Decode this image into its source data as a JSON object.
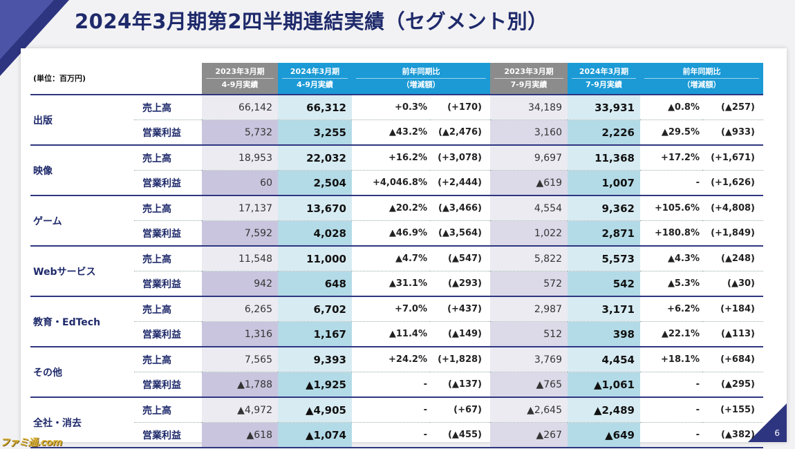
{
  "title": "2024年3月期第2四半期連結実績（セグメント別）",
  "unit_label": "(単位：百万円)",
  "page_number": "6",
  "watermark": "ファミ通.com",
  "headers": {
    "c1": [
      "2023年3月期",
      "4-9月実績"
    ],
    "c2": [
      "2024年3月期",
      "4-9月実績"
    ],
    "c3": [
      "前年同期比",
      "（増減額）"
    ],
    "c4": [
      "2023年3月期",
      "7-9月実績"
    ],
    "c5": [
      "2024年3月期",
      "7-9月実績"
    ],
    "c6": [
      "前年同期比",
      "（増減額）"
    ]
  },
  "segments": [
    {
      "name": "出版",
      "rows": [
        {
          "label": "売上高",
          "v1": "66,142",
          "v2": "66,312",
          "p1": "+0.3%",
          "a1": "(+170)",
          "v3": "34,189",
          "v4": "33,931",
          "p2": "▲0.8%",
          "a2": "(▲257)"
        },
        {
          "label": "営業利益",
          "v1": "5,732",
          "v2": "3,255",
          "p1": "▲43.2%",
          "a1": "(▲2,476)",
          "v3": "3,160",
          "v4": "2,226",
          "p2": "▲29.5%",
          "a2": "(▲933)"
        }
      ]
    },
    {
      "name": "映像",
      "rows": [
        {
          "label": "売上高",
          "v1": "18,953",
          "v2": "22,032",
          "p1": "+16.2%",
          "a1": "(+3,078)",
          "v3": "9,697",
          "v4": "11,368",
          "p2": "+17.2%",
          "a2": "(+1,671)"
        },
        {
          "label": "営業利益",
          "v1": "60",
          "v2": "2,504",
          "p1": "+4,046.8%",
          "a1": "(+2,444)",
          "v3": "▲619",
          "v4": "1,007",
          "p2": "-",
          "a2": "(+1,626)"
        }
      ]
    },
    {
      "name": "ゲーム",
      "rows": [
        {
          "label": "売上高",
          "v1": "17,137",
          "v2": "13,670",
          "p1": "▲20.2%",
          "a1": "(▲3,466)",
          "v3": "4,554",
          "v4": "9,362",
          "p2": "+105.6%",
          "a2": "(+4,808)"
        },
        {
          "label": "営業利益",
          "v1": "7,592",
          "v2": "4,028",
          "p1": "▲46.9%",
          "a1": "(▲3,564)",
          "v3": "1,022",
          "v4": "2,871",
          "p2": "+180.8%",
          "a2": "(+1,849)"
        }
      ]
    },
    {
      "name": "Webサービス",
      "rows": [
        {
          "label": "売上高",
          "v1": "11,548",
          "v2": "11,000",
          "p1": "▲4.7%",
          "a1": "(▲547)",
          "v3": "5,822",
          "v4": "5,573",
          "p2": "▲4.3%",
          "a2": "(▲248)"
        },
        {
          "label": "営業利益",
          "v1": "942",
          "v2": "648",
          "p1": "▲31.1%",
          "a1": "(▲293)",
          "v3": "572",
          "v4": "542",
          "p2": "▲5.3%",
          "a2": "(▲30)"
        }
      ]
    },
    {
      "name": "教育・EdTech",
      "rows": [
        {
          "label": "売上高",
          "v1": "6,265",
          "v2": "6,702",
          "p1": "+7.0%",
          "a1": "(+437)",
          "v3": "2,987",
          "v4": "3,171",
          "p2": "+6.2%",
          "a2": "(+184)"
        },
        {
          "label": "営業利益",
          "v1": "1,316",
          "v2": "1,167",
          "p1": "▲11.4%",
          "a1": "(▲149)",
          "v3": "512",
          "v4": "398",
          "p2": "▲22.1%",
          "a2": "(▲113)"
        }
      ]
    },
    {
      "name": "その他",
      "rows": [
        {
          "label": "売上高",
          "v1": "7,565",
          "v2": "9,393",
          "p1": "+24.2%",
          "a1": "(+1,828)",
          "v3": "3,769",
          "v4": "4,454",
          "p2": "+18.1%",
          "a2": "(+684)"
        },
        {
          "label": "営業利益",
          "v1": "▲1,788",
          "v2": "▲1,925",
          "p1": "-",
          "a1": "(▲137)",
          "v3": "▲765",
          "v4": "▲1,061",
          "p2": "-",
          "a2": "(▲295)"
        }
      ]
    },
    {
      "name": "全社・消去",
      "rows": [
        {
          "label": "売上高",
          "v1": "▲4,972",
          "v2": "▲4,905",
          "p1": "-",
          "a1": "(+67)",
          "v3": "▲2,645",
          "v4": "▲2,489",
          "p2": "-",
          "a2": "(+155)"
        },
        {
          "label": "営業利益",
          "v1": "▲618",
          "v2": "▲1,074",
          "p1": "-",
          "a1": "(▲455)",
          "v3": "▲267",
          "v4": "▲649",
          "p2": "-",
          "a2": "(▲382)"
        }
      ]
    }
  ]
}
